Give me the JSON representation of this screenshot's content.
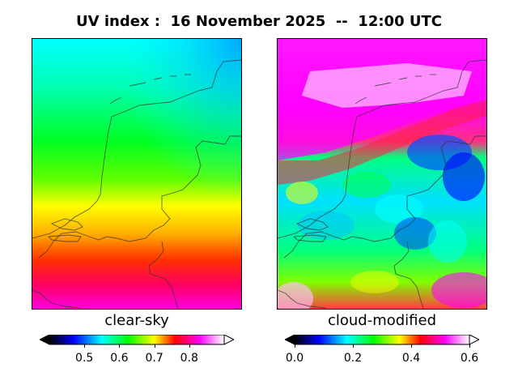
{
  "title": "UV index :  16 November 2025  --  12:00 UTC",
  "panels": [
    {
      "label": "clear-sky",
      "colorbar": {
        "range": [
          0.4,
          0.9
        ],
        "ticks": [
          "0.5",
          "0.6",
          "0.7",
          "0.8"
        ],
        "tick_values": [
          0.5,
          0.6,
          0.7,
          0.8
        ],
        "extend": "both"
      }
    },
    {
      "label": "cloud-modified",
      "colorbar": {
        "range": [
          0.0,
          0.6
        ],
        "ticks": [
          "0.0",
          "0.2",
          "0.4",
          "0.6"
        ],
        "tick_values": [
          0.0,
          0.2,
          0.4,
          0.6
        ],
        "extend": "both"
      }
    }
  ],
  "colormap": [
    "#000000",
    "#0000ff",
    "#00ffff",
    "#00ff00",
    "#ffff00",
    "#ff0000",
    "#ff00ff",
    "#ffffff"
  ]
}
